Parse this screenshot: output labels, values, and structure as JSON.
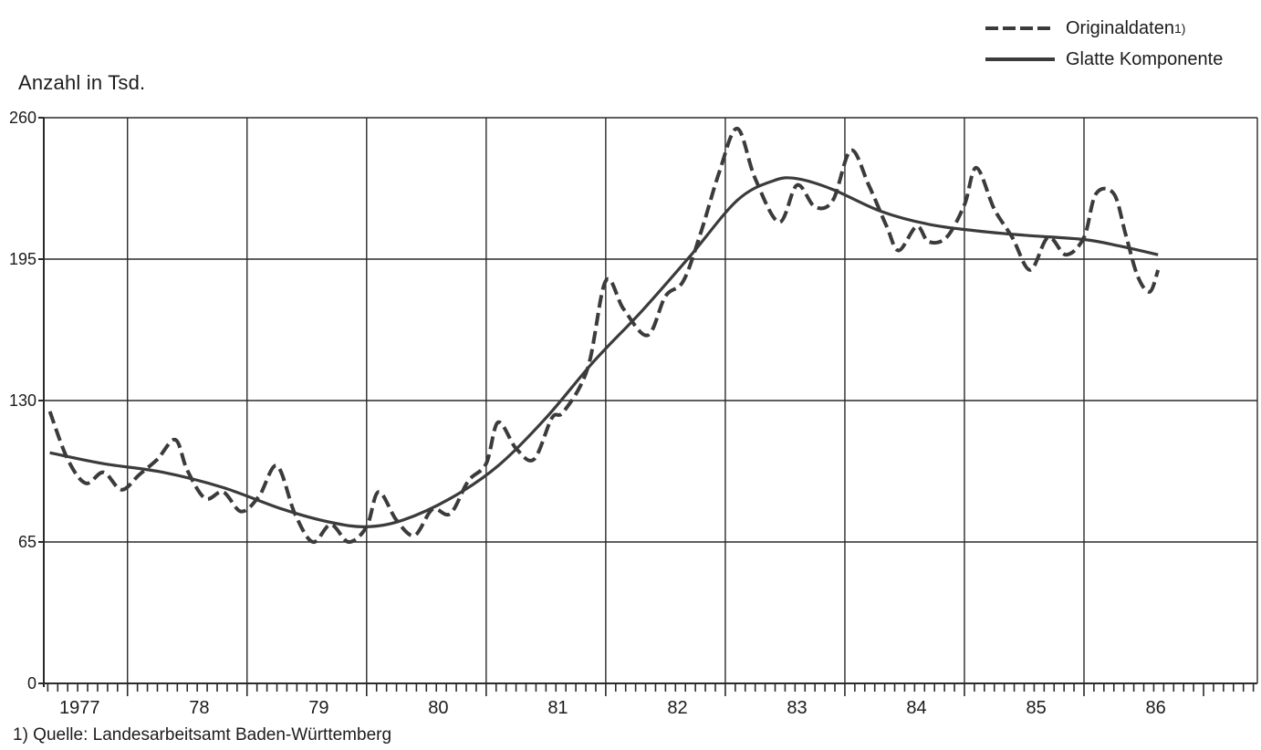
{
  "chart_data": {
    "type": "line",
    "ylabel": "Anzahl in Tsd.",
    "ylim": [
      0,
      260
    ],
    "yticks": [
      "0",
      "65",
      "130",
      "195",
      "260"
    ],
    "ytick_values": [
      0,
      65,
      130,
      195,
      260
    ],
    "x_range": [
      1976.8,
      1986.95
    ],
    "year_boundaries": [
      1977.5,
      1978.5,
      1979.5,
      1980.5,
      1981.5,
      1982.5,
      1983.5,
      1984.5,
      1985.5
    ],
    "xticks": [
      {
        "label": "1977",
        "x": 1977.1
      },
      {
        "label": "78",
        "x": 1978.1
      },
      {
        "label": "79",
        "x": 1979.1
      },
      {
        "label": "80",
        "x": 1980.1
      },
      {
        "label": "81",
        "x": 1981.1
      },
      {
        "label": "82",
        "x": 1982.1
      },
      {
        "label": "83",
        "x": 1983.1
      },
      {
        "label": "84",
        "x": 1984.1
      },
      {
        "label": "85",
        "x": 1985.1
      },
      {
        "label": "86",
        "x": 1986.1
      }
    ],
    "legend_position": "top-right",
    "grid": true,
    "series": [
      {
        "name": "Originaldaten",
        "name_sup": "1)",
        "style": "dashed",
        "color": "#3b3b3b",
        "points": [
          [
            1976.85,
            125
          ],
          [
            1977.0,
            103
          ],
          [
            1977.15,
            92
          ],
          [
            1977.3,
            97
          ],
          [
            1977.45,
            89
          ],
          [
            1977.6,
            96
          ],
          [
            1977.75,
            103
          ],
          [
            1977.9,
            112
          ],
          [
            1978.0,
            98
          ],
          [
            1978.15,
            85
          ],
          [
            1978.3,
            88
          ],
          [
            1978.45,
            79
          ],
          [
            1978.6,
            86
          ],
          [
            1978.75,
            100
          ],
          [
            1978.9,
            78
          ],
          [
            1979.05,
            65
          ],
          [
            1979.2,
            73
          ],
          [
            1979.35,
            65
          ],
          [
            1979.5,
            72
          ],
          [
            1979.6,
            88
          ],
          [
            1979.75,
            75
          ],
          [
            1979.9,
            68
          ],
          [
            1980.05,
            80
          ],
          [
            1980.2,
            78
          ],
          [
            1980.35,
            93
          ],
          [
            1980.5,
            101
          ],
          [
            1980.6,
            120
          ],
          [
            1980.75,
            108
          ],
          [
            1980.9,
            103
          ],
          [
            1981.05,
            122
          ],
          [
            1981.15,
            125
          ],
          [
            1981.35,
            145
          ],
          [
            1981.5,
            185
          ],
          [
            1981.65,
            172
          ],
          [
            1981.85,
            160
          ],
          [
            1982.0,
            178
          ],
          [
            1982.15,
            185
          ],
          [
            1982.3,
            208
          ],
          [
            1982.45,
            235
          ],
          [
            1982.6,
            255
          ],
          [
            1982.75,
            232
          ],
          [
            1982.95,
            212
          ],
          [
            1983.1,
            229
          ],
          [
            1983.25,
            219
          ],
          [
            1983.4,
            222
          ],
          [
            1983.55,
            245
          ],
          [
            1983.7,
            229
          ],
          [
            1983.85,
            210
          ],
          [
            1983.95,
            199
          ],
          [
            1984.1,
            210
          ],
          [
            1984.2,
            203
          ],
          [
            1984.35,
            205
          ],
          [
            1984.5,
            220
          ],
          [
            1984.6,
            237
          ],
          [
            1984.75,
            218
          ],
          [
            1984.9,
            205
          ],
          [
            1985.05,
            190
          ],
          [
            1985.2,
            205
          ],
          [
            1985.35,
            197
          ],
          [
            1985.5,
            205
          ],
          [
            1985.6,
            225
          ],
          [
            1985.75,
            225
          ],
          [
            1985.85,
            206
          ],
          [
            1985.95,
            187
          ],
          [
            1986.05,
            180
          ],
          [
            1986.12,
            190
          ]
        ]
      },
      {
        "name": "Glatte Komponente",
        "name_sup": "",
        "style": "solid",
        "color": "#3b3b3b",
        "points": [
          [
            1976.85,
            106
          ],
          [
            1977.3,
            101
          ],
          [
            1977.8,
            97
          ],
          [
            1978.3,
            90
          ],
          [
            1978.8,
            80
          ],
          [
            1979.2,
            74
          ],
          [
            1979.5,
            72
          ],
          [
            1979.8,
            75
          ],
          [
            1980.2,
            85
          ],
          [
            1980.6,
            100
          ],
          [
            1981.0,
            122
          ],
          [
            1981.4,
            148
          ],
          [
            1981.8,
            171
          ],
          [
            1982.2,
            196
          ],
          [
            1982.6,
            222
          ],
          [
            1982.9,
            231
          ],
          [
            1983.1,
            232
          ],
          [
            1983.4,
            227
          ],
          [
            1983.8,
            217
          ],
          [
            1984.2,
            211
          ],
          [
            1984.6,
            208
          ],
          [
            1985.0,
            206
          ],
          [
            1985.5,
            204
          ],
          [
            1985.8,
            201
          ],
          [
            1986.12,
            197
          ]
        ]
      }
    ]
  },
  "footnote": "1) Quelle: Landesarbeitsamt Baden-Württemberg"
}
